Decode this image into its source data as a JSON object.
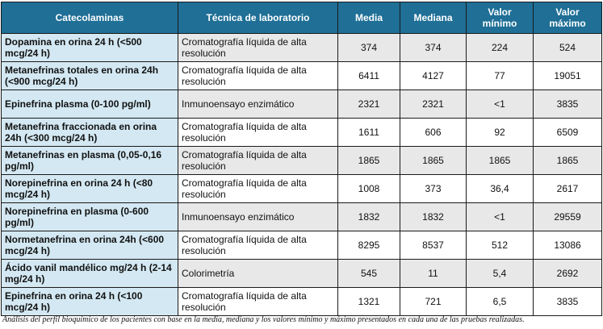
{
  "table": {
    "headers": [
      "Catecolaminas",
      "Técnica de laboratorio",
      "Media",
      "Mediana",
      "Valor mínimo",
      "Valor máximo"
    ],
    "rows": [
      {
        "cat": "Dopamina en orina 24 h (<500 mcg/24 h)",
        "tec": "Cromatografía líquida de alta resolución",
        "media": "374",
        "mediana": "374",
        "min": "224",
        "max": "524"
      },
      {
        "cat": "Metanefrinas totales en orina 24h (<900 mcg/24 h)",
        "tec": "Cromatografía líquida de alta resolución",
        "media": "6411",
        "mediana": "4127",
        "min": "77",
        "max": "19051"
      },
      {
        "cat": "Epinefrina plasma (0-100 pg/ml)",
        "tec": "Inmunoensayo enzimático",
        "media": "2321",
        "mediana": "2321",
        "min": "<1",
        "max": "3835"
      },
      {
        "cat": "Metanefrina fraccionada en orina 24h (<300 mcg/24 h)",
        "tec": "Cromatografía líquida de alta resolución",
        "media": "1611",
        "mediana": "606",
        "min": "92",
        "max": "6509"
      },
      {
        "cat": "Metanefrinas en plasma (0,05-0,16 pg/ml)",
        "tec": "Cromatografía líquida de alta resolución",
        "media": "1865",
        "mediana": "1865",
        "min": "1865",
        "max": "1865"
      },
      {
        "cat": "Norepinefrina en orina 24 h (<80 mcg/24 h)",
        "tec": "Cromatografía líquida de alta resolución",
        "media": "1008",
        "mediana": "373",
        "min": "36,4",
        "max": "2617"
      },
      {
        "cat": "Norepinefrina en plasma (0-600 pg/ml)",
        "tec": "Inmunoensayo enzimático",
        "media": "1832",
        "mediana": "1832",
        "min": "<1",
        "max": "29559"
      },
      {
        "cat": "Normetanefrina en orina 24h (<600 mcg/24 h)",
        "tec": "Cromatografía líquida de alta resolución",
        "media": "8295",
        "mediana": "8537",
        "min": "512",
        "max": "13086"
      },
      {
        "cat": "Ácido vanil mandélico mg/24 h (2-14 mg/24 h)",
        "tec": "Colorimetría",
        "media": "545",
        "mediana": "11",
        "min": "5,4",
        "max": "2692"
      },
      {
        "cat": "Epinefrina en orina 24 h (<100 mcg/24 h)",
        "tec": "Cromatografía líquida de alta resolución",
        "media": "1321",
        "mediana": "721",
        "min": "6,5",
        "max": "3835"
      }
    ]
  },
  "caption": "Análisis del perfil bioquímico de los pacientes con base en la media, mediana y los valores mínimo y máximo presentados en cada una de las pruebas realizadas."
}
